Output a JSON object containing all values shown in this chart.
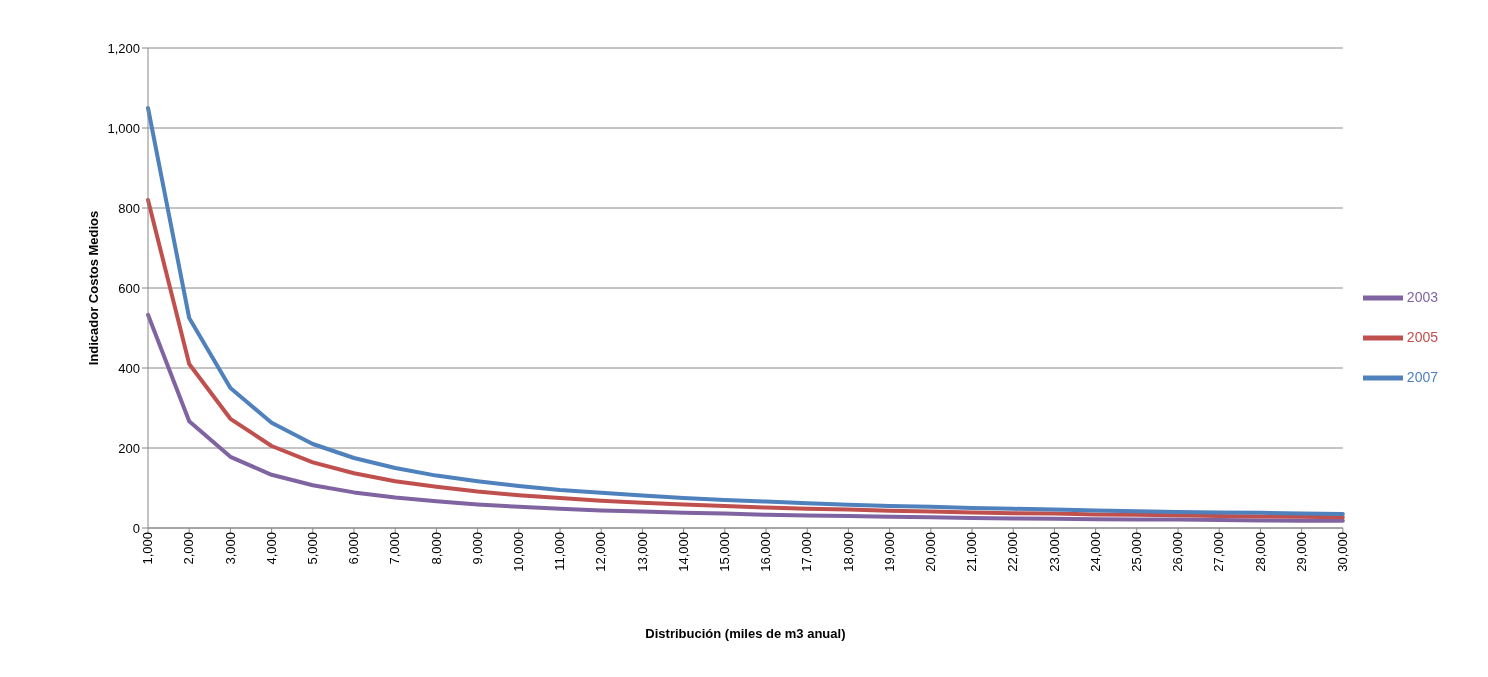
{
  "chart_data": {
    "type": "line",
    "xlabel": "Distribución (miles de m3 anual)",
    "ylabel": "Indicador Costos Medios",
    "categories": [
      "1,000",
      "2,000",
      "3,000",
      "4,000",
      "5,000",
      "6,000",
      "7,000",
      "8,000",
      "9,000",
      "10,000",
      "11,000",
      "12,000",
      "13,000",
      "14,000",
      "15,000",
      "16,000",
      "17,000",
      "18,000",
      "19,000",
      "20,000",
      "21,000",
      "22,000",
      "23,000",
      "24,000",
      "25,000",
      "26,000",
      "27,000",
      "28,000",
      "29,000",
      "30,000"
    ],
    "series": [
      {
        "name": "2003",
        "color": "#8064a2",
        "values": [
          533,
          267,
          178,
          133,
          107,
          89,
          76,
          67,
          59,
          53,
          48,
          44,
          41,
          38,
          36,
          33,
          31,
          30,
          28,
          27,
          25,
          24,
          23,
          22,
          21,
          21,
          20,
          19,
          18,
          18
        ]
      },
      {
        "name": "2005",
        "color": "#c0504d",
        "values": [
          820,
          410,
          273,
          205,
          164,
          137,
          117,
          103,
          91,
          82,
          75,
          68,
          63,
          59,
          55,
          51,
          48,
          46,
          43,
          41,
          39,
          37,
          36,
          34,
          33,
          32,
          30,
          29,
          28,
          27
        ]
      },
      {
        "name": "2007",
        "color": "#4f81bd",
        "values": [
          1050,
          525,
          350,
          263,
          210,
          175,
          150,
          131,
          117,
          105,
          95,
          88,
          81,
          75,
          70,
          66,
          62,
          58,
          55,
          53,
          50,
          48,
          46,
          44,
          42,
          40,
          39,
          38,
          36,
          35
        ]
      }
    ],
    "ylim": [
      0,
      1200
    ],
    "yticks": [
      {
        "value": 0,
        "label": "0"
      },
      {
        "value": 200,
        "label": "200"
      },
      {
        "value": 400,
        "label": "400"
      },
      {
        "value": 600,
        "label": "600"
      },
      {
        "value": 800,
        "label": "800"
      },
      {
        "value": 1000,
        "label": "1,000"
      },
      {
        "value": 1200,
        "label": "1,200"
      }
    ],
    "grid": "y",
    "legend": "right",
    "marker": "none",
    "line_style": "solid"
  }
}
